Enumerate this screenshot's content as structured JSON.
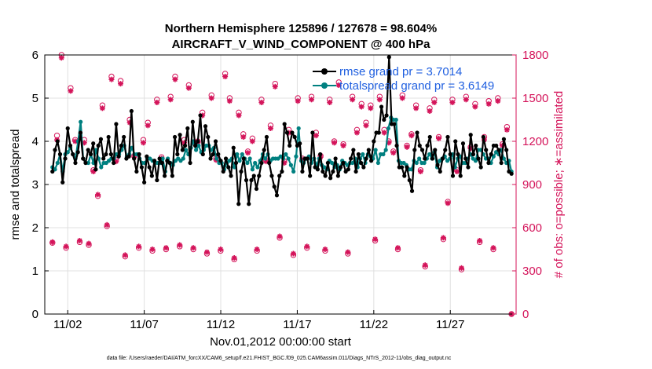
{
  "chart_data": {
    "type": "line",
    "title_line1": "Northern Hemisphere 125896 / 127678 = 98.604%",
    "title_line2": "AIRCRAFT_V_WIND_COMPONENT @ 400 hPa",
    "xlabel": "Nov.01,2012 00:00:00 start",
    "ylabel_left": "rmse and totalspread",
    "ylabel_right": "# of obs: o=possible; ∗=assimilated",
    "footnote": "data file: /Users/raeder/DAI/ATM_forcXX/CAM6_setup/f.e21.FHIST_BGC.f09_025.CAM6assim.011/Diags_NTrS_2012-11/obs_diag_output.nc",
    "xlim": [
      0.5,
      31.3
    ],
    "ylim_left": [
      0,
      6
    ],
    "ylim_right": [
      0,
      1800
    ],
    "grid": true,
    "x_tick_values": [
      2,
      7,
      12,
      17,
      22,
      27
    ],
    "x_tick_labels": [
      "11/02",
      "11/07",
      "11/12",
      "11/17",
      "11/22",
      "11/27"
    ],
    "y_left_ticks": [
      "0",
      "1",
      "2",
      "3",
      "4",
      "5",
      "6"
    ],
    "y_right_ticks": [
      "0",
      "300",
      "600",
      "900",
      "1200",
      "1500",
      "1800"
    ],
    "legend": [
      {
        "label": "rmse grand pr = 3.7014",
        "color": "#000000"
      },
      {
        "label": "totalspread grand pr = 3.6149",
        "color": "#008080"
      }
    ],
    "colors": {
      "rmse": "#000000",
      "totalspread": "#008080",
      "obs": "#d4145a",
      "grid": "#e0e0e0"
    },
    "series": [
      {
        "name": "rmse",
        "values": [
          3.3,
          3.8,
          4.0,
          3.7,
          3.05,
          3.6,
          4.3,
          3.9,
          3.7,
          3.5,
          3.75,
          4.2,
          3.6,
          3.5,
          3.8,
          3.7,
          3.95,
          3.35,
          3.9,
          4.05,
          3.6,
          3.7,
          4.1,
          3.7,
          3.5,
          4.4,
          3.65,
          3.9,
          4.1,
          3.6,
          3.65,
          4.7,
          3.6,
          3.3,
          3.7,
          3.4,
          3.05,
          3.65,
          3.4,
          3.2,
          3.55,
          3.1,
          3.6,
          3.5,
          3.2,
          3.55,
          3.5,
          3.2,
          4.1,
          3.7,
          4.15,
          3.8,
          3.9,
          4.3,
          3.5,
          4.45,
          3.9,
          4.0,
          4.6,
          3.7,
          4.35,
          4.1,
          3.6,
          3.7,
          4.0,
          3.7,
          3.55,
          3.3,
          3.6,
          3.4,
          3.2,
          3.85,
          3.5,
          2.55,
          3.3,
          3.6,
          3.1,
          2.55,
          3.1,
          3.2,
          2.9,
          3.2,
          3.5,
          3.8,
          4.1,
          3.5,
          3.2,
          2.95,
          2.75,
          3.2,
          3.3,
          4.4,
          4.2,
          3.9,
          4.2,
          4.1,
          3.9,
          3.95,
          3.3,
          3.6,
          3.6,
          3.2,
          4.2,
          3.4,
          3.35,
          3.7,
          3.3,
          3.2,
          3.5,
          3.15,
          3.3,
          3.6,
          3.2,
          3.4,
          3.5,
          3.3,
          3.35,
          3.6,
          3.8,
          3.3,
          3.7,
          3.5,
          3.4,
          3.6,
          3.8,
          3.55,
          4.0,
          4.2,
          4.2,
          4.8,
          4.5,
          4.6,
          5.95,
          4.4,
          4.4,
          3.9,
          3.4,
          3.4,
          3.2,
          3.4,
          3.1,
          2.85,
          3.8,
          4.2,
          3.9,
          3.8,
          3.6,
          3.9,
          4.1,
          3.6,
          3.8,
          3.45,
          3.3,
          3.6,
          3.8,
          4.1,
          3.7,
          3.2,
          4.0,
          3.7,
          3.2,
          3.95,
          3.6,
          3.4,
          4.15,
          3.7,
          3.9,
          3.6,
          3.4,
          4.1,
          3.8,
          3.5,
          3.7,
          3.9,
          3.9,
          3.8,
          3.5,
          4.05,
          3.8,
          3.3,
          3.25
        ]
      },
      {
        "name": "totalspread",
        "values": [
          3.4,
          3.35,
          3.5,
          3.7,
          3.3,
          3.7,
          3.75,
          3.85,
          3.7,
          3.6,
          4.0,
          4.45,
          3.6,
          3.5,
          3.5,
          3.7,
          3.5,
          3.8,
          3.6,
          3.4,
          3.5,
          3.5,
          3.55,
          3.6,
          3.6,
          3.7,
          3.7,
          3.8,
          3.9,
          3.65,
          3.7,
          3.85,
          3.7,
          3.7,
          3.6,
          3.5,
          3.5,
          3.6,
          3.6,
          3.55,
          3.5,
          3.5,
          3.5,
          3.6,
          3.3,
          3.6,
          3.5,
          3.45,
          3.55,
          3.6,
          3.55,
          3.6,
          3.8,
          3.7,
          3.85,
          4.0,
          3.8,
          3.9,
          3.75,
          3.8,
          3.9,
          3.9,
          3.8,
          3.85,
          3.6,
          3.5,
          3.5,
          3.35,
          3.5,
          3.55,
          3.6,
          3.4,
          3.7,
          3.55,
          3.7,
          3.6,
          3.5,
          3.6,
          3.35,
          3.5,
          3.4,
          3.55,
          3.7,
          3.6,
          3.7,
          3.55,
          3.6,
          3.6,
          3.6,
          3.65,
          3.6,
          3.7,
          3.6,
          3.45,
          3.3,
          3.65,
          4.3,
          3.55,
          3.5,
          3.6,
          3.65,
          3.5,
          3.6,
          3.45,
          3.6,
          3.45,
          3.4,
          3.35,
          3.55,
          3.5,
          3.4,
          3.45,
          3.35,
          3.55,
          3.5,
          3.45,
          3.5,
          3.5,
          3.6,
          3.4,
          3.6,
          3.7,
          3.5,
          3.7,
          3.65,
          3.6,
          3.8,
          3.5,
          3.7,
          3.7,
          3.8,
          4.3,
          4.55,
          4.5,
          4.5,
          3.55,
          3.5,
          3.5,
          3.45,
          3.35,
          3.35,
          3.55,
          3.5,
          3.6,
          3.5,
          3.5,
          3.6,
          3.7,
          3.6,
          3.75,
          3.4,
          3.55,
          3.6,
          3.65,
          3.55,
          3.6,
          3.7,
          3.4,
          3.6,
          3.65,
          3.5,
          3.5,
          3.6,
          3.7,
          3.6,
          3.55,
          3.8,
          3.8,
          3.7,
          3.6,
          3.6,
          3.5,
          3.65,
          3.75,
          3.7,
          3.8,
          3.6,
          3.5,
          3.55,
          3.3
        ]
      },
      {
        "name": "obs_possible",
        "values": [
          495,
          1240,
          1800,
          460,
          1570,
          1210,
          500,
          1210,
          480,
          1000,
          820,
          1450,
          610,
          1650,
          1070,
          1620,
          400,
          1350,
          1100,
          460,
          1210,
          1330,
          440,
          1490,
          1090,
          450,
          1510,
          1650,
          470,
          1210,
          1590,
          450,
          1200,
          1400,
          420,
          1520,
          1080,
          440,
          1670,
          1500,
          380,
          1400,
          1250,
          1130,
          1220,
          440,
          1490,
          1070,
          1310,
          1600,
          530,
          1060,
          1280,
          410,
          1500,
          1080,
          460,
          1510,
          1260,
          1100,
          440,
          1490,
          1200,
          1610,
          1180,
          420,
          1510,
          1280,
          1460,
          1330,
          1450,
          510,
          1510,
          1280,
          1200,
          1130,
          450,
          1520,
          1170,
          1250,
          1450,
          1000,
          330,
          1430,
          1490,
          1230,
          520,
          780,
          1490,
          1000,
          310,
          1510,
          1160,
          1460,
          500,
          1230,
          1480,
          450,
          1500,
          1180,
          1300,
          0
        ]
      },
      {
        "name": "obs_assimilated",
        "values": [
          500,
          1210,
          1780,
          470,
          1550,
          1200,
          510,
          1190,
          490,
          990,
          830,
          1430,
          620,
          1630,
          1060,
          1600,
          410,
          1330,
          1090,
          470,
          1190,
          1310,
          450,
          1470,
          1080,
          460,
          1490,
          1630,
          480,
          1190,
          1570,
          460,
          1190,
          1380,
          430,
          1500,
          1070,
          450,
          1650,
          1480,
          390,
          1380,
          1230,
          1120,
          1200,
          450,
          1470,
          1060,
          1290,
          1580,
          540,
          1050,
          1260,
          420,
          1480,
          1070,
          470,
          1490,
          1240,
          1090,
          450,
          1470,
          1190,
          1590,
          1170,
          430,
          1490,
          1260,
          1440,
          1310,
          1430,
          520,
          1490,
          1260,
          1190,
          1120,
          460,
          1500,
          1160,
          1240,
          1430,
          990,
          340,
          1410,
          1470,
          1220,
          530,
          770,
          1470,
          990,
          320,
          1490,
          1150,
          1440,
          510,
          1210,
          1460,
          460,
          1480,
          1170,
          1280,
          0
        ]
      }
    ]
  }
}
